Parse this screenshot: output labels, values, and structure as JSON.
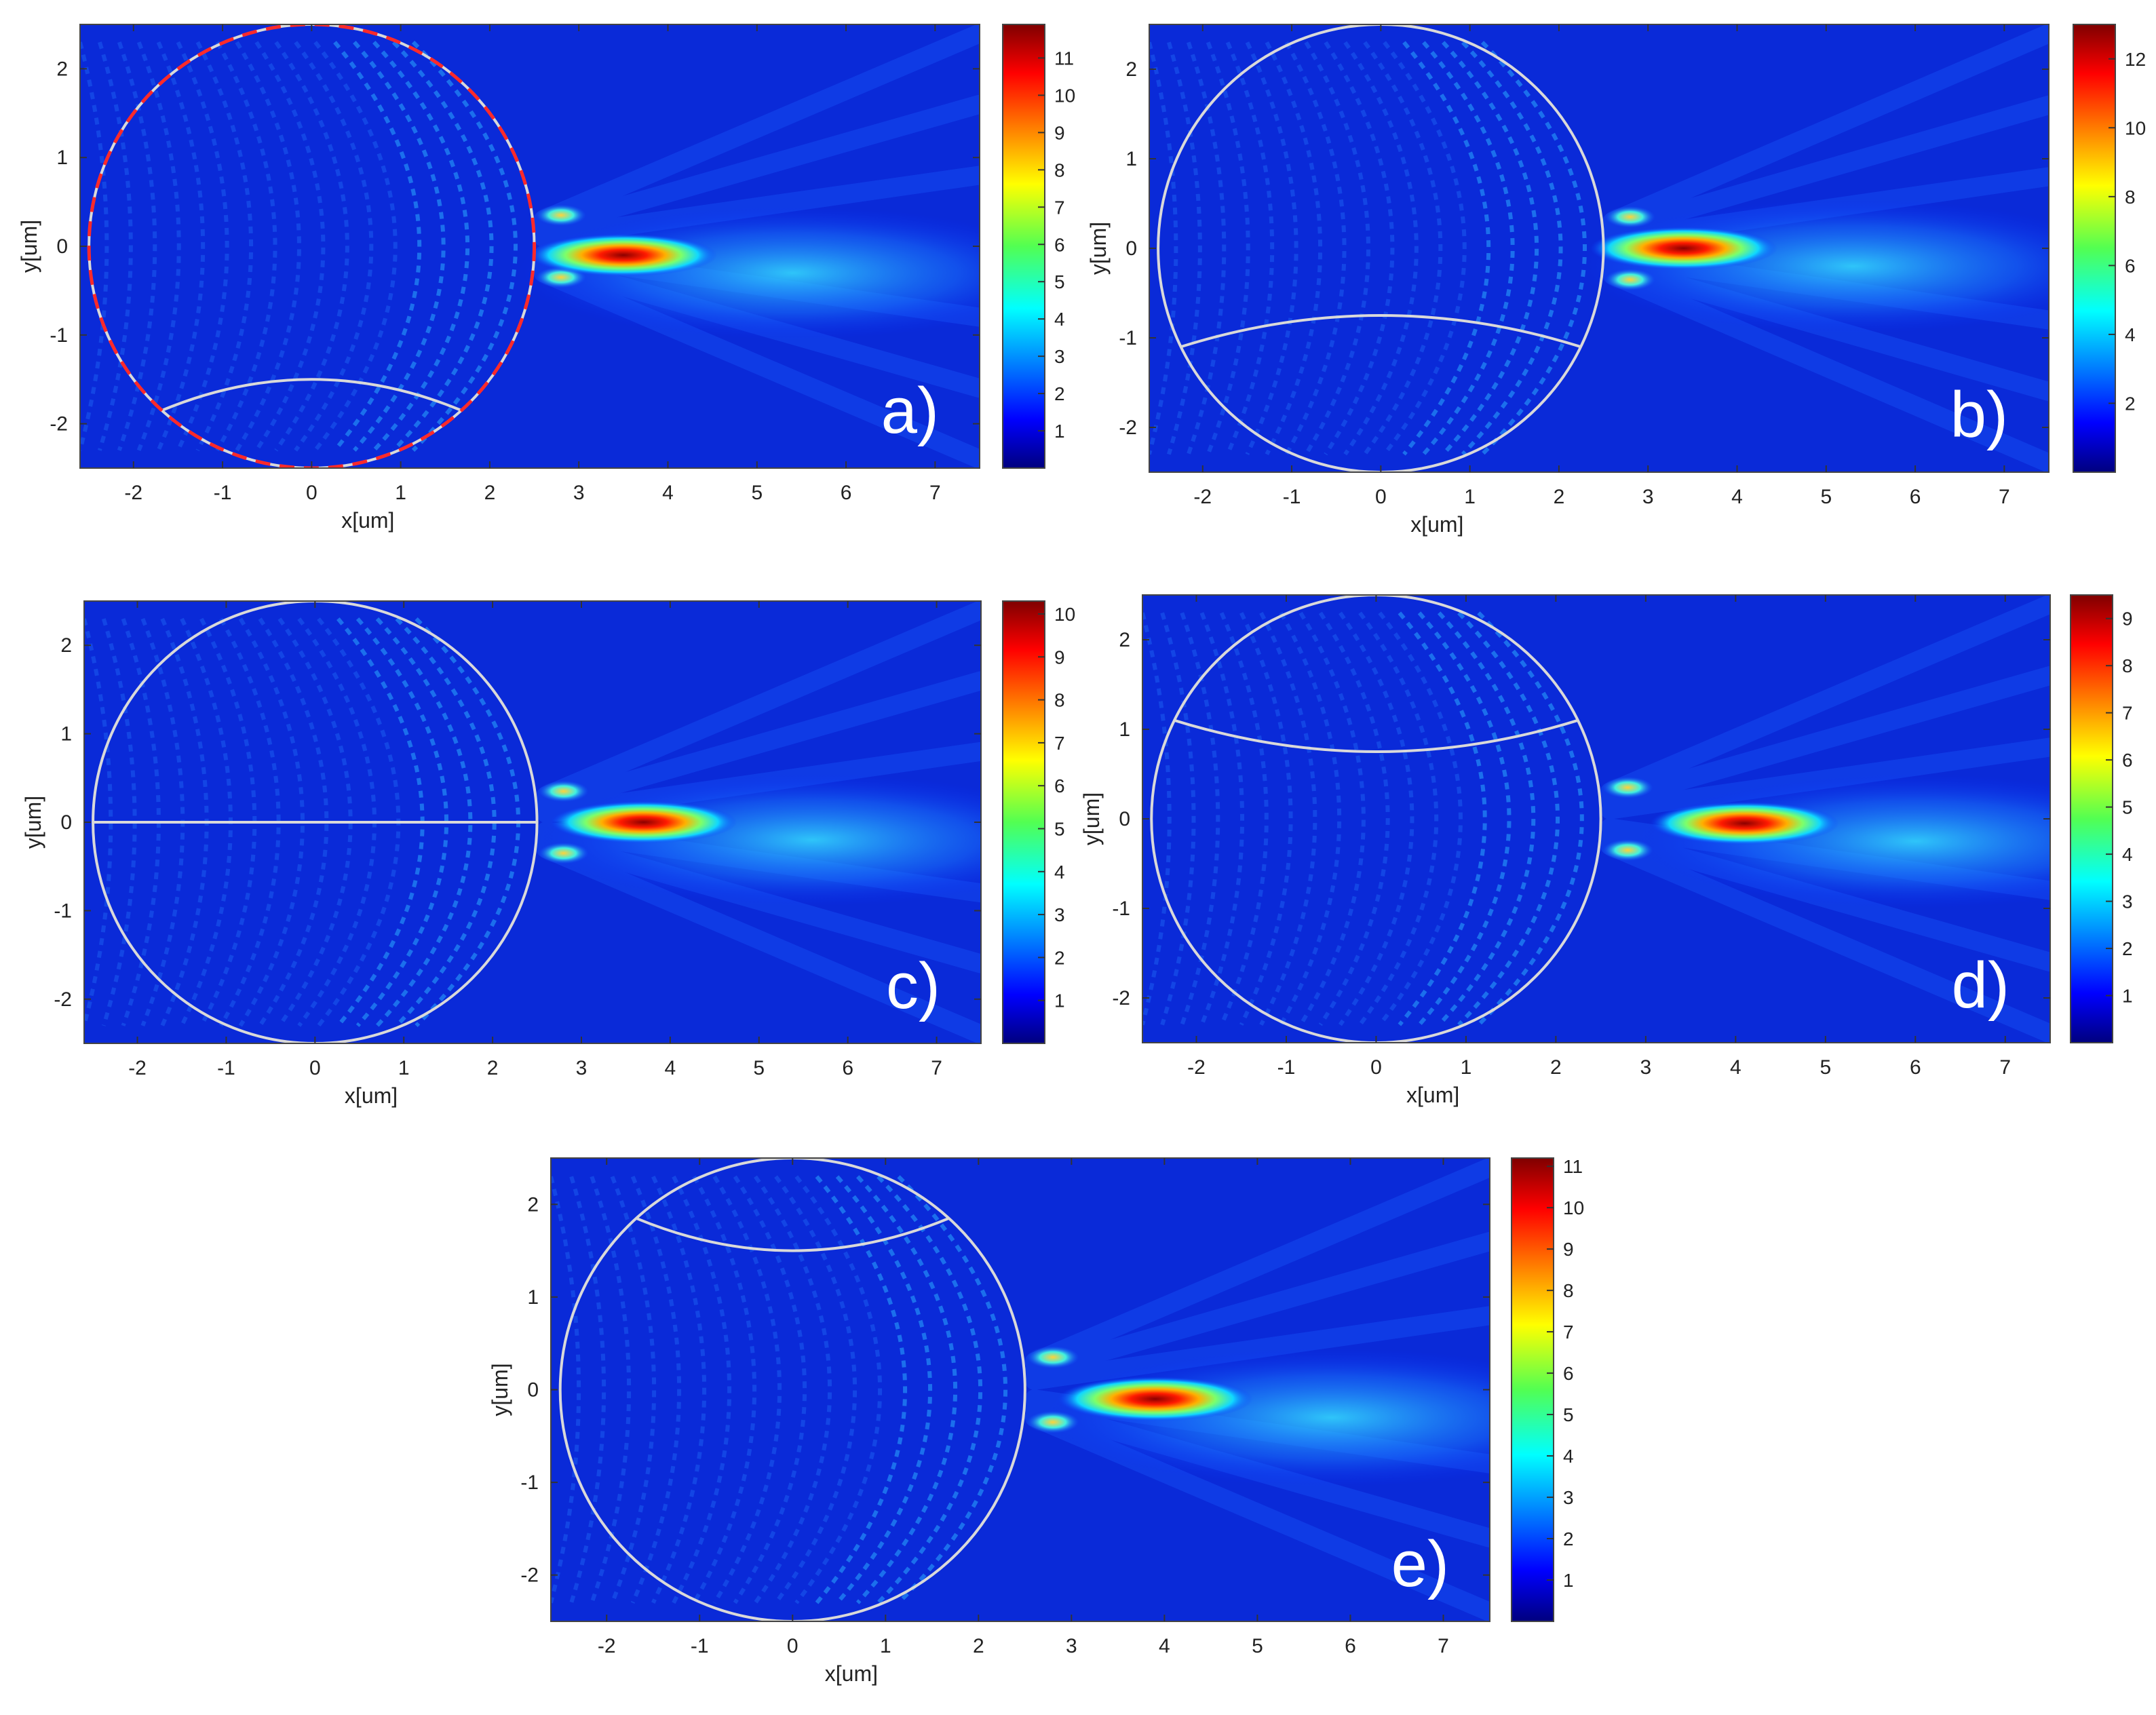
{
  "figure": {
    "panels": [
      {
        "id": "a",
        "label": "a)",
        "cbar_ticks": [
          1,
          2,
          3,
          4,
          5,
          6,
          7,
          8,
          9,
          10,
          11
        ],
        "cbar_max": 11.9,
        "split_line": "bottom-arc",
        "split_y": -1.5,
        "dashed_circle": true
      },
      {
        "id": "b",
        "label": "b)",
        "cbar_ticks": [
          2,
          4,
          6,
          8,
          10,
          12
        ],
        "cbar_max": 13.0,
        "split_line": "bottom-arc",
        "split_y": -0.75,
        "dashed_circle": false
      },
      {
        "id": "c",
        "label": "c)",
        "cbar_ticks": [
          1,
          2,
          3,
          4,
          5,
          6,
          7,
          8,
          9,
          10
        ],
        "cbar_max": 10.3,
        "split_line": "horizontal",
        "split_y": 0,
        "dashed_circle": false
      },
      {
        "id": "d",
        "label": "d)",
        "cbar_ticks": [
          1,
          2,
          3,
          4,
          5,
          6,
          7,
          8,
          9
        ],
        "cbar_max": 9.5,
        "split_line": "top-arc",
        "split_y": 0.75,
        "dashed_circle": false
      },
      {
        "id": "e",
        "label": "e)",
        "cbar_ticks": [
          1,
          2,
          3,
          4,
          5,
          6,
          7,
          8,
          9,
          10,
          11
        ],
        "cbar_max": 11.2,
        "split_line": "top-arc",
        "split_y": 1.5,
        "dashed_circle": false
      }
    ]
  },
  "chart_data": [
    {
      "type": "heatmap",
      "panel": "a)",
      "xlabel": "x[um]",
      "ylabel": "y[um]",
      "xlim": [
        -2.6,
        7.5
      ],
      "ylim": [
        -2.5,
        2.5
      ],
      "xticks": [
        -2,
        -1,
        0,
        1,
        2,
        3,
        4,
        5,
        6,
        7
      ],
      "yticks": [
        -2,
        -1,
        0,
        1,
        2
      ],
      "colorbar_ticks": [
        1,
        2,
        3,
        4,
        5,
        6,
        7,
        8,
        9,
        10,
        11
      ],
      "colormap": "jet",
      "peak": {
        "x": 3.5,
        "y": -0.1,
        "value": 11.9
      },
      "sphere": {
        "center": [
          0,
          0
        ],
        "radius": 2.5
      }
    },
    {
      "type": "heatmap",
      "panel": "b)",
      "xlabel": "x[um]",
      "ylabel": "y[um]",
      "xlim": [
        -2.6,
        7.5
      ],
      "ylim": [
        -2.5,
        2.5
      ],
      "xticks": [
        -2,
        -1,
        0,
        1,
        2,
        3,
        4,
        5,
        6,
        7
      ],
      "yticks": [
        -2,
        -1,
        0,
        1,
        2
      ],
      "colorbar_ticks": [
        2,
        4,
        6,
        8,
        10,
        12
      ],
      "colormap": "jet",
      "peak": {
        "x": 3.4,
        "y": 0.0,
        "value": 13.0
      },
      "sphere": {
        "center": [
          0,
          0
        ],
        "radius": 2.5
      }
    },
    {
      "type": "heatmap",
      "panel": "c)",
      "xlabel": "x[um]",
      "ylabel": "y[um]",
      "xlim": [
        -2.6,
        7.5
      ],
      "ylim": [
        -2.5,
        2.5
      ],
      "xticks": [
        -2,
        -1,
        0,
        1,
        2,
        3,
        4,
        5,
        6,
        7
      ],
      "yticks": [
        -2,
        -1,
        0,
        1,
        2
      ],
      "colorbar_ticks": [
        1,
        2,
        3,
        4,
        5,
        6,
        7,
        8,
        9,
        10
      ],
      "colormap": "jet",
      "peak": {
        "x": 3.7,
        "y": 0.0,
        "value": 10.3
      },
      "sphere": {
        "center": [
          0,
          0
        ],
        "radius": 2.5
      }
    },
    {
      "type": "heatmap",
      "panel": "d)",
      "xlabel": "x[um]",
      "ylabel": "y[um]",
      "xlim": [
        -2.6,
        7.5
      ],
      "ylim": [
        -2.5,
        2.5
      ],
      "xticks": [
        -2,
        -1,
        0,
        1,
        2,
        3,
        4,
        5,
        6,
        7
      ],
      "yticks": [
        -2,
        -1,
        0,
        1,
        2
      ],
      "colorbar_ticks": [
        1,
        2,
        3,
        4,
        5,
        6,
        7,
        8,
        9
      ],
      "colormap": "jet",
      "peak": {
        "x": 4.1,
        "y": -0.05,
        "value": 9.5
      },
      "sphere": {
        "center": [
          0,
          0
        ],
        "radius": 2.5
      }
    },
    {
      "type": "heatmap",
      "panel": "e)",
      "xlabel": "x[um]",
      "ylabel": "y[um]",
      "xlim": [
        -2.6,
        7.5
      ],
      "ylim": [
        -2.5,
        2.5
      ],
      "xticks": [
        -2,
        -1,
        0,
        1,
        2,
        3,
        4,
        5,
        6,
        7
      ],
      "yticks": [
        -2,
        -1,
        0,
        1,
        2
      ],
      "colorbar_ticks": [
        1,
        2,
        3,
        4,
        5,
        6,
        7,
        8,
        9,
        10,
        11
      ],
      "colormap": "jet",
      "peak": {
        "x": 3.9,
        "y": -0.1,
        "value": 11.2
      },
      "sphere": {
        "center": [
          0,
          0
        ],
        "radius": 2.5
      }
    }
  ]
}
